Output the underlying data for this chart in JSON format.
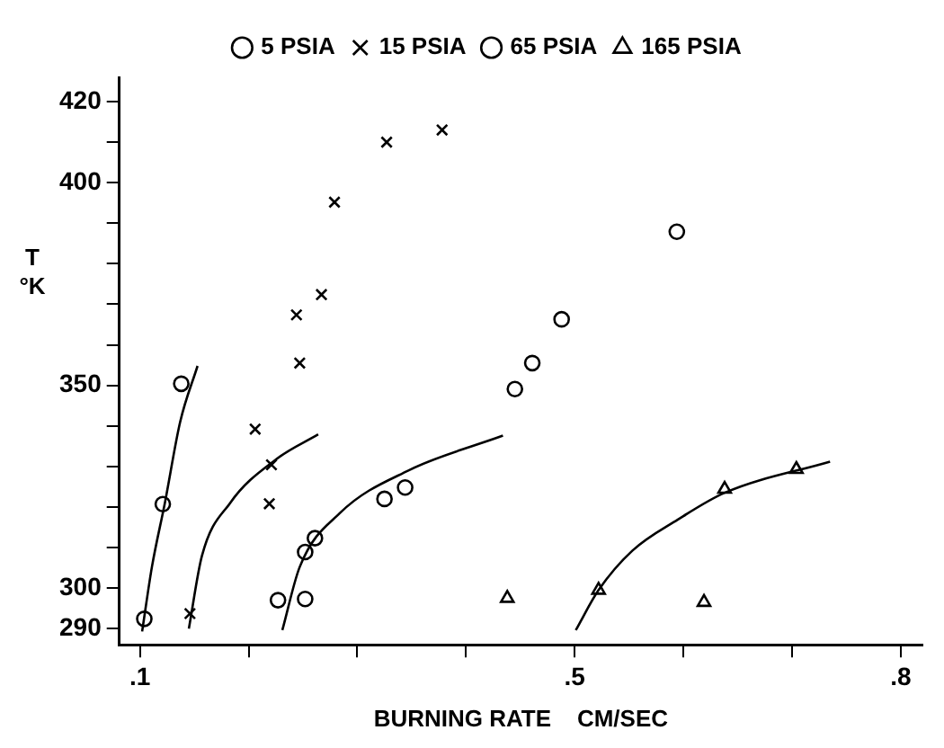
{
  "chart_data": {
    "type": "scatter",
    "xlabel": "BURNING RATE    CM/SEC",
    "ylabel": "T °K",
    "xlim": [
      0.081,
      0.82
    ],
    "ylim": [
      286,
      426
    ],
    "xticks": [
      {
        "value": 0.1,
        "label": ".1"
      },
      {
        "value": 0.2,
        "label": null
      },
      {
        "value": 0.3,
        "label": null
      },
      {
        "value": 0.4,
        "label": null
      },
      {
        "value": 0.5,
        "label": ".5"
      },
      {
        "value": 0.6,
        "label": null
      },
      {
        "value": 0.7,
        "label": null
      },
      {
        "value": 0.8,
        "label": ".8"
      }
    ],
    "yticks": [
      290,
      300,
      {
        "value": 310,
        "label": null
      },
      {
        "value": 320,
        "label": null
      },
      {
        "value": 330,
        "label": null
      },
      {
        "value": 340,
        "label": null
      },
      350,
      {
        "value": 360,
        "label": null
      },
      {
        "value": 370,
        "label": null
      },
      {
        "value": 380,
        "label": null
      },
      {
        "value": 390,
        "label": null
      },
      400,
      {
        "value": 410,
        "label": null
      },
      420
    ],
    "grid": false,
    "legend": "top",
    "series": [
      {
        "name": "5 PSIA",
        "type": "scatter",
        "marker": "circle",
        "color": "#000000",
        "x": [
          0.104,
          0.121,
          0.138
        ],
        "values": [
          292.4,
          320.7,
          350.4
        ]
      },
      {
        "name": "15 PSIA",
        "type": "scatter",
        "marker": "cross",
        "color": "#000000",
        "x": [
          0.146,
          0.206,
          0.221,
          0.219,
          0.247,
          0.244,
          0.267,
          0.279,
          0.327,
          0.378
        ],
        "values": [
          293.7,
          339.2,
          330.4,
          320.8,
          355.5,
          367.4,
          372.4,
          395.2,
          410,
          413
        ]
      },
      {
        "name": "65 PSIA",
        "type": "scatter",
        "marker": "circle",
        "color": "#000000",
        "x": [
          0.227,
          0.252,
          0.252,
          0.261,
          0.325,
          0.344,
          0.445,
          0.461,
          0.488,
          0.594
        ],
        "values": [
          297,
          297.3,
          308.9,
          312.3,
          322,
          324.8,
          349.1,
          355.5,
          366.3,
          387.9
        ]
      },
      {
        "name": "165 PSIA",
        "type": "scatter",
        "marker": "triangle",
        "color": "#000000",
        "x": [
          0.438,
          0.522,
          0.619,
          0.638,
          0.704
        ],
        "values": [
          297.5,
          299.5,
          296.5,
          324.4,
          329.3
        ]
      },
      {
        "type": "line",
        "marker": "none",
        "color": "#000000",
        "x": [
          0.102,
          0.111,
          0.123,
          0.137,
          0.153
        ],
        "values": [
          289.3,
          305.2,
          321.1,
          341,
          354.8
        ]
      },
      {
        "type": "line",
        "marker": "none",
        "color": "#000000",
        "x": [
          0.145,
          0.157,
          0.183,
          0.225,
          0.264
        ],
        "values": [
          290,
          307.9,
          321,
          331.7,
          337.9
        ]
      },
      {
        "type": "line",
        "marker": "none",
        "color": "#000000",
        "x": [
          0.231,
          0.247,
          0.284,
          0.347,
          0.434
        ],
        "values": [
          289.6,
          305.2,
          318.5,
          329,
          337.6
        ]
      },
      {
        "type": "line",
        "marker": "none",
        "color": "#000000",
        "x": [
          0.501,
          0.522,
          0.553,
          0.595,
          0.638,
          0.735
        ],
        "values": [
          289.6,
          299.5,
          309.2,
          316.9,
          323.5,
          331.2
        ]
      }
    ]
  }
}
